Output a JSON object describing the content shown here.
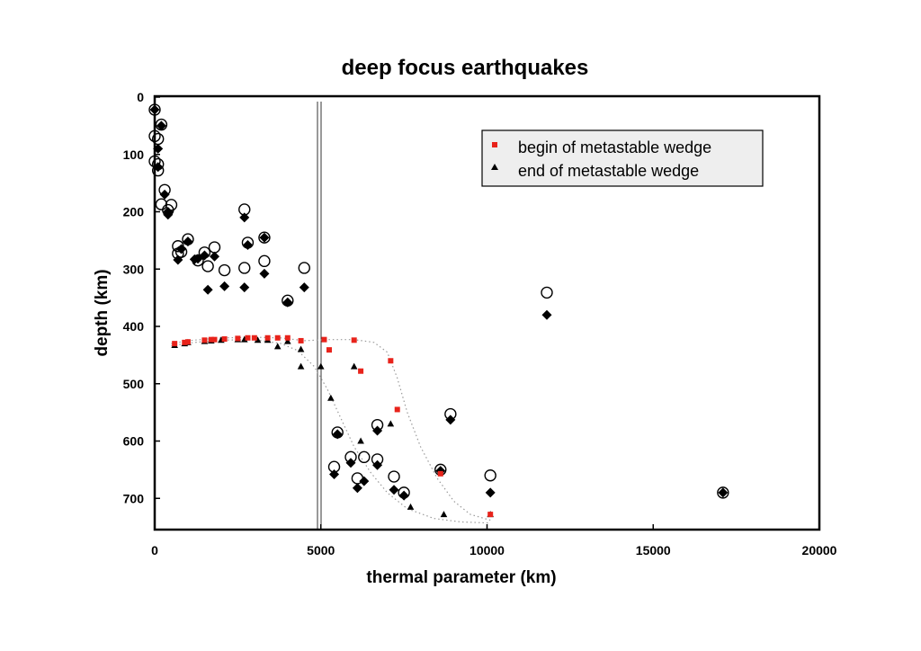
{
  "chart_data": {
    "type": "scatter",
    "title": "deep focus earthquakes",
    "xlabel": "thermal parameter (km)",
    "ylabel": "depth (km)",
    "xlim": [
      0,
      20000
    ],
    "ylim": [
      750,
      0
    ],
    "y_inverted": true,
    "xticks": [
      0,
      5000,
      10000,
      15000,
      20000
    ],
    "yticks": [
      0,
      100,
      200,
      300,
      400,
      500,
      600,
      700
    ],
    "legend_position": "top-right",
    "grid": false,
    "colors": {
      "begin": "#e8231b",
      "end": "#000000",
      "marker": "#000000",
      "curve": "#9a9a9a"
    },
    "series": [
      {
        "name": "begin of metastable wedge",
        "marker": "square",
        "points": [
          [
            600,
            430
          ],
          [
            900,
            428
          ],
          [
            1000,
            427
          ],
          [
            1500,
            424
          ],
          [
            1700,
            423
          ],
          [
            1800,
            423
          ],
          [
            2100,
            422
          ],
          [
            2500,
            421
          ],
          [
            2800,
            420
          ],
          [
            3000,
            420
          ],
          [
            3400,
            420
          ],
          [
            3700,
            420
          ],
          [
            4000,
            420
          ],
          [
            4400,
            425
          ],
          [
            5100,
            423
          ],
          [
            5250,
            441
          ],
          [
            6000,
            424
          ],
          [
            6200,
            478
          ],
          [
            7100,
            460
          ],
          [
            7300,
            545
          ],
          [
            8600,
            657
          ],
          [
            10100,
            728
          ]
        ]
      },
      {
        "name": "end of metastable wedge",
        "marker": "triangle",
        "points": [
          [
            600,
            433
          ],
          [
            900,
            430
          ],
          [
            1000,
            428
          ],
          [
            1500,
            426
          ],
          [
            1700,
            425
          ],
          [
            2000,
            424
          ],
          [
            2500,
            423
          ],
          [
            2700,
            423
          ],
          [
            3100,
            424
          ],
          [
            3400,
            424
          ],
          [
            3700,
            435
          ],
          [
            4000,
            426
          ],
          [
            4400,
            440
          ],
          [
            4400,
            470
          ],
          [
            5000,
            470
          ],
          [
            5300,
            525
          ],
          [
            6000,
            470
          ],
          [
            6200,
            600
          ],
          [
            7100,
            570
          ],
          [
            7700,
            715
          ],
          [
            8700,
            728
          ],
          [
            10100,
            728
          ]
        ]
      },
      {
        "marker": "open-circle",
        "points": [
          [
            0,
            22
          ],
          [
            200,
            48
          ],
          [
            0,
            68
          ],
          [
            100,
            73
          ],
          [
            0,
            112
          ],
          [
            100,
            117
          ],
          [
            100,
            128
          ],
          [
            300,
            162
          ],
          [
            200,
            187
          ],
          [
            500,
            188
          ],
          [
            400,
            197
          ],
          [
            1000,
            248
          ],
          [
            700,
            260
          ],
          [
            800,
            270
          ],
          [
            700,
            273
          ],
          [
            1300,
            285
          ],
          [
            1500,
            271
          ],
          [
            1800,
            262
          ],
          [
            1600,
            295
          ],
          [
            2100,
            302
          ],
          [
            2700,
            196
          ],
          [
            2800,
            254
          ],
          [
            2700,
            298
          ],
          [
            3300,
            245
          ],
          [
            3300,
            286
          ],
          [
            4000,
            355
          ],
          [
            4500,
            298
          ],
          [
            5400,
            645
          ],
          [
            5500,
            585
          ],
          [
            5900,
            628
          ],
          [
            6300,
            628
          ],
          [
            6100,
            665
          ],
          [
            6700,
            572
          ],
          [
            6700,
            632
          ],
          [
            7200,
            662
          ],
          [
            7500,
            690
          ],
          [
            8600,
            650
          ],
          [
            8900,
            553
          ],
          [
            10100,
            660
          ],
          [
            11800,
            341
          ],
          [
            17100,
            690
          ]
        ]
      },
      {
        "marker": "filled-diamond",
        "points": [
          [
            0,
            22
          ],
          [
            200,
            50
          ],
          [
            100,
            90
          ],
          [
            100,
            122
          ],
          [
            300,
            170
          ],
          [
            400,
            200
          ],
          [
            400,
            205
          ],
          [
            1000,
            252
          ],
          [
            800,
            265
          ],
          [
            700,
            284
          ],
          [
            1200,
            283
          ],
          [
            1300,
            282
          ],
          [
            1500,
            276
          ],
          [
            1800,
            278
          ],
          [
            1600,
            336
          ],
          [
            2100,
            330
          ],
          [
            2700,
            210
          ],
          [
            2800,
            258
          ],
          [
            2700,
            332
          ],
          [
            3300,
            245
          ],
          [
            3300,
            308
          ],
          [
            4000,
            358
          ],
          [
            4500,
            332
          ],
          [
            5400,
            658
          ],
          [
            5500,
            588
          ],
          [
            5900,
            638
          ],
          [
            6100,
            682
          ],
          [
            6300,
            670
          ],
          [
            6700,
            582
          ],
          [
            6700,
            642
          ],
          [
            7200,
            685
          ],
          [
            7500,
            695
          ],
          [
            8600,
            652
          ],
          [
            8900,
            563
          ],
          [
            10100,
            690
          ],
          [
            11800,
            380
          ],
          [
            17100,
            690
          ]
        ]
      },
      {
        "marker": "dotted-line",
        "points": [
          [
            500,
            430
          ],
          [
            1000,
            425
          ],
          [
            2000,
            420
          ],
          [
            3000,
            419
          ],
          [
            3800,
            420
          ],
          [
            4500,
            425
          ],
          [
            5200,
            423
          ],
          [
            6000,
            423
          ],
          [
            6600,
            428
          ],
          [
            7000,
            445
          ],
          [
            7300,
            490
          ],
          [
            7600,
            550
          ],
          [
            8000,
            610
          ],
          [
            8500,
            665
          ],
          [
            9000,
            705
          ],
          [
            9500,
            728
          ],
          [
            10100,
            738
          ]
        ]
      },
      {
        "marker": "dotted-line",
        "points": [
          [
            500,
            434
          ],
          [
            1000,
            429
          ],
          [
            2000,
            424
          ],
          [
            3000,
            423
          ],
          [
            3800,
            430
          ],
          [
            4300,
            442
          ],
          [
            4800,
            470
          ],
          [
            5200,
            510
          ],
          [
            5600,
            560
          ],
          [
            6000,
            610
          ],
          [
            6500,
            655
          ],
          [
            7000,
            690
          ],
          [
            7600,
            718
          ],
          [
            8400,
            735
          ],
          [
            9200,
            741
          ],
          [
            10100,
            743
          ]
        ]
      }
    ]
  }
}
